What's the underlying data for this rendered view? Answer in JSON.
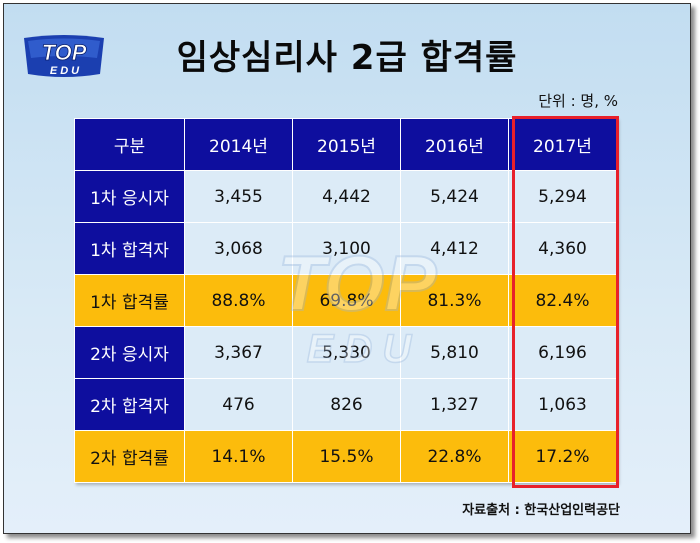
{
  "logo": {
    "line1": "TOP",
    "line2": "EDU"
  },
  "title": "임상심리사 2급 합격률",
  "unit": "단위 : 명, %",
  "table": {
    "headers": [
      "구분",
      "2014년",
      "2015년",
      "2016년",
      "2017년"
    ],
    "rows": [
      {
        "label": "1차 응시자",
        "values": [
          "3,455",
          "4,442",
          "5,424",
          "5,294"
        ]
      },
      {
        "label": "1차 합격자",
        "values": [
          "3,068",
          "3,100",
          "4,412",
          "4,360"
        ]
      },
      {
        "label": "1차 합격률",
        "values": [
          "88.8%",
          "69.8%",
          "81.3%",
          "82.4%"
        ]
      },
      {
        "label": "2차 응시자",
        "values": [
          "3,367",
          "5,330",
          "5,810",
          "6,196"
        ]
      },
      {
        "label": "2차 합격자",
        "values": [
          "476",
          "826",
          "1,327",
          "1,063"
        ]
      },
      {
        "label": "2차 합격률",
        "values": [
          "14.1%",
          "15.5%",
          "22.8%",
          "17.2%"
        ]
      }
    ]
  },
  "source": "자료출처 : 한국산업인력공단",
  "colors": {
    "header_bg": "#0e0e9e",
    "rate_row_bg": "#fcbc0c",
    "cell_bg": "#dcebf7",
    "highlight_border": "#e8202a"
  }
}
